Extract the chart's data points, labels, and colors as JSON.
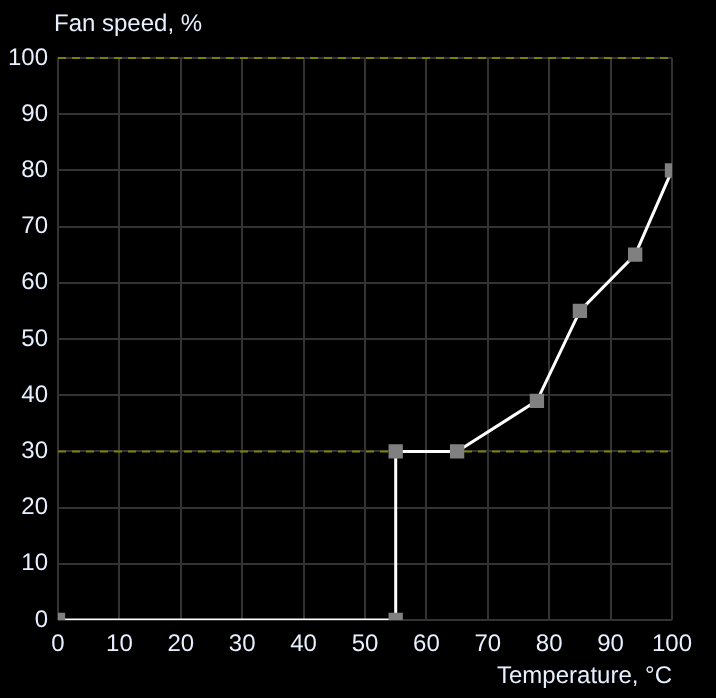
{
  "chart_data": {
    "type": "line",
    "xlabel": "Temperature, °C",
    "ylabel": "Fan speed, %",
    "x": [
      0,
      55,
      55,
      65,
      78,
      85,
      94,
      100
    ],
    "series": [
      {
        "color": "#ffffff",
        "values": [
          0,
          0,
          30,
          30,
          39,
          55,
          65,
          80
        ]
      }
    ],
    "xlim": [
      0,
      100
    ],
    "xticks": [
      0,
      10,
      20,
      30,
      40,
      50,
      60,
      70,
      80,
      90,
      100
    ],
    "ylim": [
      0,
      100
    ],
    "yticks": [
      0,
      10,
      20,
      30,
      40,
      50,
      60,
      70,
      80,
      90,
      100
    ],
    "ref_lines": [
      {
        "axis": "y",
        "value": 30,
        "color": "#808000",
        "line_style": "dashed"
      },
      {
        "axis": "y",
        "value": 100,
        "color": "#808000",
        "line_style": "dashed"
      }
    ],
    "grid": true,
    "legend": false,
    "marker": "square",
    "line_style": "solid"
  }
}
